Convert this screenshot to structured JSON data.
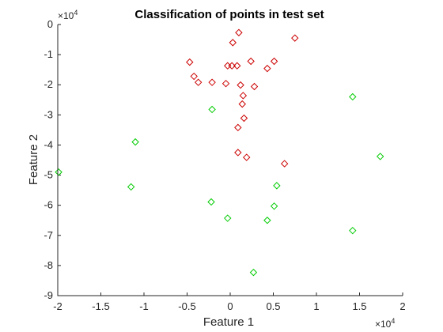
{
  "chart_data": {
    "type": "scatter",
    "title": "Classification of points in test set",
    "xlabel": "Feature 1",
    "ylabel": "Feature 2",
    "x_exponent_label": "×10",
    "x_exponent_power": "4",
    "y_exponent_label": "×10",
    "y_exponent_power": "4",
    "xlim": [
      -20000,
      20000
    ],
    "ylim": [
      -90000,
      0
    ],
    "x_ticks": [
      -20000,
      -15000,
      -10000,
      -5000,
      0,
      5000,
      10000,
      15000,
      20000
    ],
    "x_tick_labels": [
      "-2",
      "-1.5",
      "-1",
      "-0.5",
      "0",
      "0.5",
      "1",
      "1.5",
      "2"
    ],
    "y_ticks": [
      0,
      -10000,
      -20000,
      -30000,
      -40000,
      -50000,
      -60000,
      -70000,
      -80000,
      -90000
    ],
    "y_tick_labels": [
      "0",
      "-1",
      "-2",
      "-3",
      "-4",
      "-5",
      "-6",
      "-7",
      "-8",
      "-9"
    ],
    "grid": false,
    "marker": "diamond",
    "series": [
      {
        "color": "#cc0000",
        "points": [
          [
            1000,
            -2700
          ],
          [
            300,
            -6000
          ],
          [
            7500,
            -4500
          ],
          [
            -4700,
            -12500
          ],
          [
            -4200,
            -17200
          ],
          [
            -3700,
            -19200
          ],
          [
            -2100,
            -19200
          ],
          [
            -300,
            -13700
          ],
          [
            200,
            -13700
          ],
          [
            800,
            -13700
          ],
          [
            2400,
            -12200
          ],
          [
            5100,
            -12200
          ],
          [
            4300,
            -14600
          ],
          [
            -500,
            -19600
          ],
          [
            1200,
            -20100
          ],
          [
            2800,
            -20600
          ],
          [
            1500,
            -23600
          ],
          [
            1400,
            -26400
          ],
          [
            1600,
            -31100
          ],
          [
            900,
            -34200
          ],
          [
            900,
            -42500
          ],
          [
            1900,
            -44100
          ],
          [
            6300,
            -46200
          ]
        ]
      },
      {
        "color": "#00cc00",
        "points": [
          [
            -2100,
            -28200
          ],
          [
            14200,
            -24000
          ],
          [
            -11000,
            -39000
          ],
          [
            17400,
            -43800
          ],
          [
            -19900,
            -49000
          ],
          [
            -11500,
            -53900
          ],
          [
            5400,
            -53500
          ],
          [
            -2200,
            -58900
          ],
          [
            5100,
            -60300
          ],
          [
            -300,
            -64300
          ],
          [
            4300,
            -65000
          ],
          [
            14200,
            -68400
          ],
          [
            2700,
            -82300
          ]
        ]
      }
    ]
  }
}
